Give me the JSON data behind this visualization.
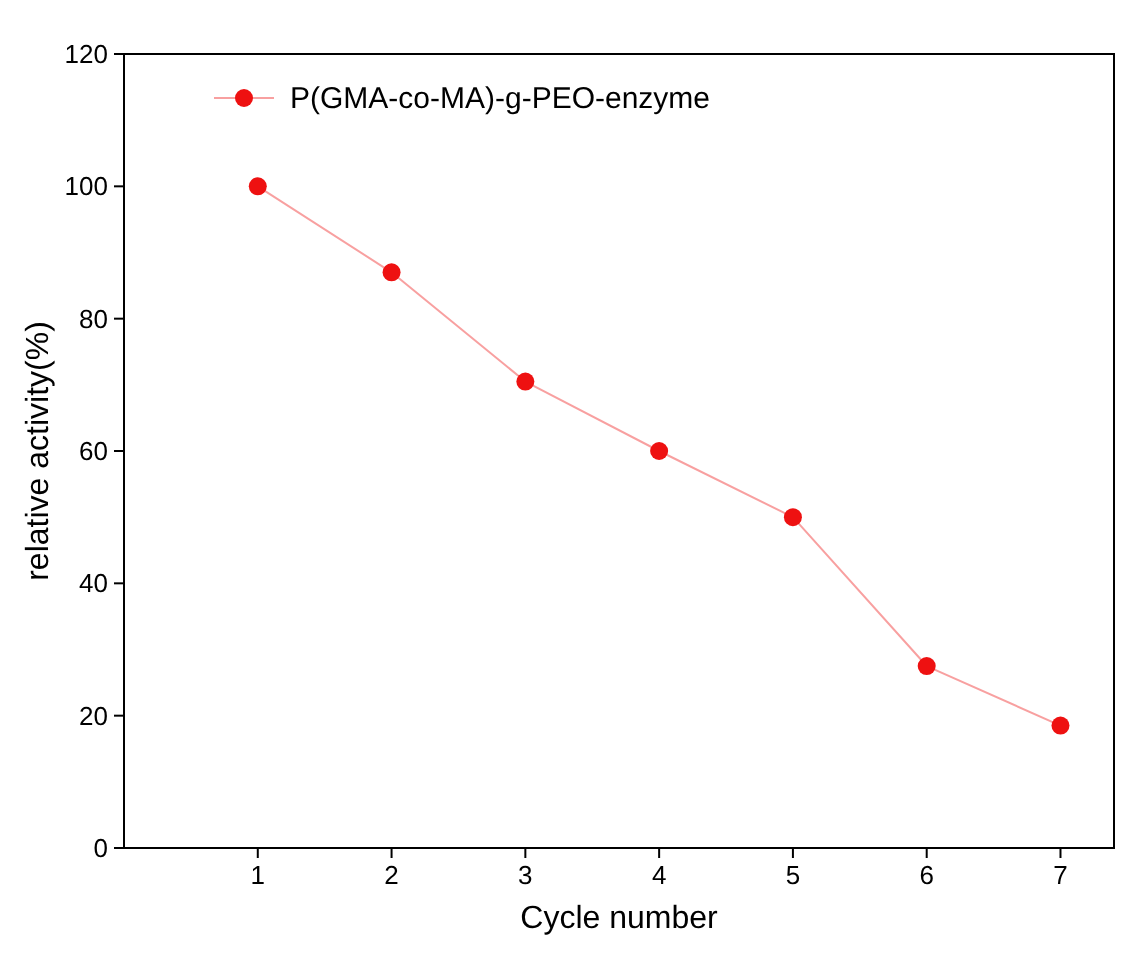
{
  "chart_data": {
    "type": "line",
    "xlabel": "Cycle number",
    "ylabel": "relative activity(%)",
    "x": [
      1,
      2,
      3,
      4,
      5,
      6,
      7
    ],
    "series": [
      {
        "name": "P(GMA-co-MA)-g-PEO-enzyme",
        "color": "#ee1111",
        "values": [
          100,
          87,
          70.5,
          60,
          50,
          27.5,
          18.5
        ]
      }
    ],
    "xlim": [
      0,
      7.4
    ],
    "xticks": [
      1,
      2,
      3,
      4,
      5,
      6,
      7
    ],
    "ylim": [
      0,
      120
    ],
    "yticks": [
      0,
      20,
      40,
      60,
      80,
      100,
      120
    ],
    "grid": false,
    "legend": "top left",
    "marker": "circle",
    "line_style": "solid"
  }
}
